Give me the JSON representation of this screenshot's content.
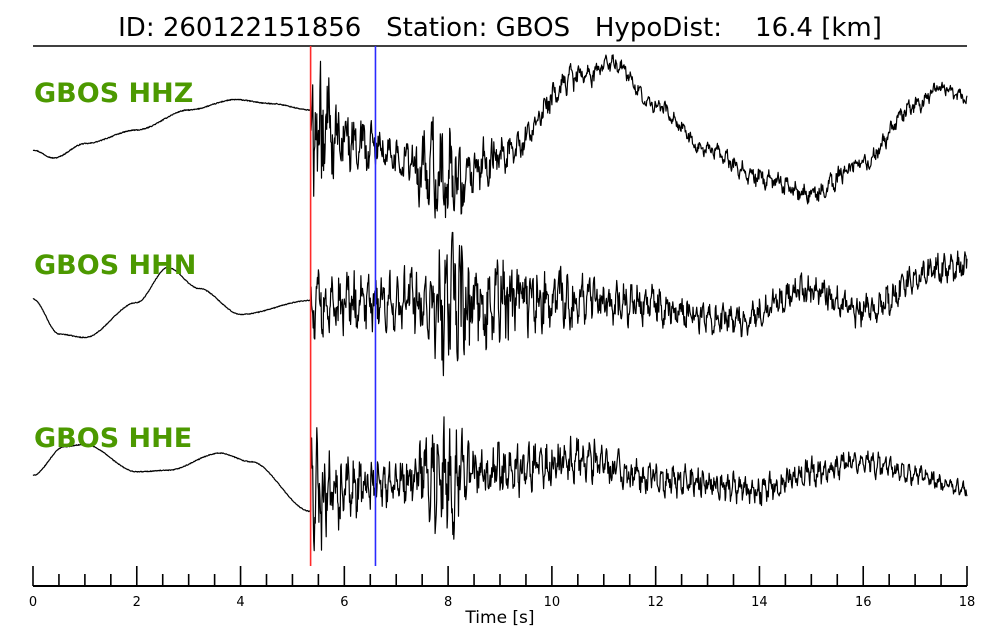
{
  "header": {
    "title": "ID: 260122151856   Station: GBOS   HypoDist:    16.4 [km]"
  },
  "colors": {
    "label": "#4c9900",
    "p_pick": "#ff2a2a",
    "s_pick": "#2a2aff",
    "trace": "#000000"
  },
  "chart_data": {
    "type": "line",
    "title": "ID: 260122151856   Station: GBOS   HypoDist:    16.4 [km]",
    "xlabel": "Time [s]",
    "xlim": [
      0,
      18
    ],
    "x_ticks": [
      "0",
      "2",
      "4",
      "6",
      "8",
      "10",
      "12",
      "14",
      "16",
      "18"
    ],
    "minor_tick_step": 0.5,
    "grid": false,
    "legend": "none",
    "picks": [
      {
        "phase": "P",
        "time": 5.35,
        "color": "#ff2a2a"
      },
      {
        "phase": "S",
        "time": 6.6,
        "color": "#2a2aff"
      }
    ],
    "series": [
      {
        "name": "GBOS HHZ",
        "pre_event_baseline": [
          [
            0,
            -0.2
          ],
          [
            0.4,
            -0.3
          ],
          [
            1.0,
            -0.12
          ],
          [
            2.0,
            0.05
          ],
          [
            3.0,
            0.3
          ],
          [
            3.9,
            0.43
          ],
          [
            4.6,
            0.38
          ],
          [
            5.35,
            0.3
          ]
        ],
        "post_event_trend": [
          [
            5.35,
            0.1
          ],
          [
            6.6,
            -0.2
          ],
          [
            7.5,
            -0.45
          ],
          [
            8.2,
            -0.6
          ],
          [
            9.0,
            -0.3
          ],
          [
            10.5,
            0.7
          ],
          [
            11.2,
            0.88
          ],
          [
            12.0,
            0.35
          ],
          [
            13.0,
            -0.2
          ],
          [
            14.0,
            -0.55
          ],
          [
            15.0,
            -0.75
          ],
          [
            16.0,
            -0.35
          ],
          [
            17.0,
            0.35
          ],
          [
            17.5,
            0.58
          ],
          [
            18.0,
            0.45
          ]
        ],
        "noise_amplitude": [
          [
            5.35,
            1.1
          ],
          [
            6.0,
            0.4
          ],
          [
            7.0,
            0.25
          ],
          [
            8.0,
            0.75
          ],
          [
            8.4,
            0.35
          ],
          [
            10.0,
            0.2
          ],
          [
            12.0,
            0.1
          ],
          [
            15.0,
            0.14
          ],
          [
            18.0,
            0.1
          ]
        ]
      },
      {
        "name": "GBOS HHN",
        "pre_event_baseline": [
          [
            0,
            0.1
          ],
          [
            0.5,
            -0.4
          ],
          [
            1.0,
            -0.45
          ],
          [
            2.0,
            0.05
          ],
          [
            2.6,
            0.55
          ],
          [
            3.2,
            0.25
          ],
          [
            4.0,
            -0.12
          ],
          [
            5.35,
            0.08
          ]
        ],
        "post_event_trend": [
          [
            5.35,
            0.05
          ],
          [
            8.0,
            0.05
          ],
          [
            10.0,
            0.12
          ],
          [
            11.5,
            0.05
          ],
          [
            13.5,
            -0.22
          ],
          [
            15.0,
            0.25
          ],
          [
            16.0,
            -0.08
          ],
          [
            17.5,
            0.55
          ],
          [
            18.0,
            0.55
          ]
        ],
        "noise_amplitude": [
          [
            5.35,
            0.55
          ],
          [
            6.6,
            0.45
          ],
          [
            7.5,
            0.55
          ],
          [
            8.0,
            1.2
          ],
          [
            9.0,
            0.7
          ],
          [
            10.0,
            0.5
          ],
          [
            11.0,
            0.35
          ],
          [
            13.0,
            0.25
          ],
          [
            18.0,
            0.25
          ]
        ]
      },
      {
        "name": "GBOS HHE",
        "pre_event_baseline": [
          [
            0,
            0.05
          ],
          [
            0.6,
            0.45
          ],
          [
            1.0,
            0.48
          ],
          [
            2.0,
            0.1
          ],
          [
            2.6,
            0.12
          ],
          [
            3.6,
            0.36
          ],
          [
            4.2,
            0.24
          ],
          [
            5.35,
            -0.45
          ]
        ],
        "post_event_trend": [
          [
            5.35,
            -0.3
          ],
          [
            6.6,
            -0.1
          ],
          [
            8.0,
            0.05
          ],
          [
            10.0,
            0.2
          ],
          [
            10.5,
            0.3
          ],
          [
            12.0,
            0.0
          ],
          [
            14.0,
            -0.15
          ],
          [
            15.0,
            0.1
          ],
          [
            16.0,
            0.25
          ],
          [
            17.0,
            0.05
          ],
          [
            18.0,
            -0.15
          ]
        ],
        "noise_amplitude": [
          [
            5.35,
            1.0
          ],
          [
            6.0,
            0.5
          ],
          [
            7.0,
            0.35
          ],
          [
            8.0,
            0.9
          ],
          [
            8.5,
            0.4
          ],
          [
            10.0,
            0.35
          ],
          [
            12.0,
            0.25
          ],
          [
            16.0,
            0.2
          ],
          [
            18.0,
            0.12
          ]
        ]
      }
    ]
  }
}
